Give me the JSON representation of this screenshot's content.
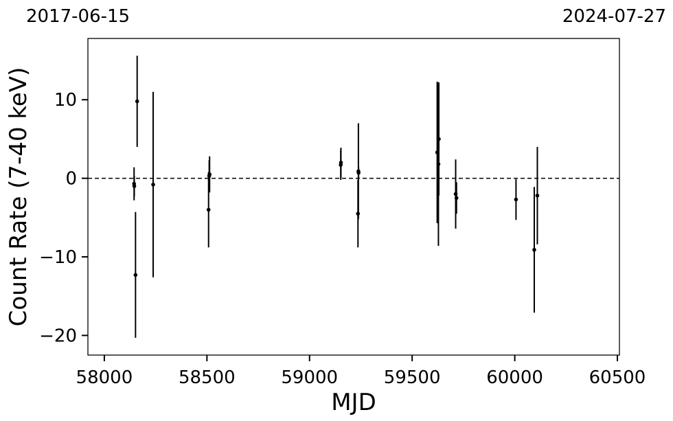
{
  "chart_data": {
    "type": "scatter",
    "title": "",
    "xlabel": "MJD",
    "ylabel": "Count Rate (7-40 keV)",
    "date_left": "2017-06-15",
    "date_right": "2024-07-27",
    "xlim": [
      57920,
      60510
    ],
    "ylim": [
      -22.5,
      17.8
    ],
    "xticks": [
      58000,
      58500,
      59000,
      59500,
      60000,
      60500
    ],
    "xtick_labels": [
      "58000",
      "58500",
      "59000",
      "59500",
      "60000",
      "60500"
    ],
    "yticks": [
      -20,
      -10,
      0,
      10
    ],
    "ytick_labels": [
      "−20",
      "−10",
      "0",
      "10"
    ],
    "reference_line": {
      "y": 0,
      "style": "dashed"
    },
    "grid": false,
    "series": [
      {
        "color": "#000000",
        "points": [
          {
            "x": 58145,
            "y": -0.7,
            "err": 2.1
          },
          {
            "x": 58146,
            "y": -1.0,
            "err": 1.3
          },
          {
            "x": 58152,
            "y": -12.3,
            "err": 8.0
          },
          {
            "x": 58160,
            "y": 9.8,
            "err": 5.8
          },
          {
            "x": 58238,
            "y": -0.8,
            "err": 11.8
          },
          {
            "x": 58508,
            "y": -4.0,
            "err": 4.8
          },
          {
            "x": 58511,
            "y": 0.3,
            "err": 2.0
          },
          {
            "x": 58513,
            "y": 0.5,
            "err": 2.3
          },
          {
            "x": 59152,
            "y": 1.7,
            "err": 1.9
          },
          {
            "x": 59153,
            "y": 2.0,
            "err": 1.9
          },
          {
            "x": 59236,
            "y": -4.5,
            "err": 4.3
          },
          {
            "x": 59238,
            "y": 0.9,
            "err": 6.1
          },
          {
            "x": 59239,
            "y": 0.7,
            "err": 0.7
          },
          {
            "x": 59622,
            "y": 3.3,
            "err": 9.0
          },
          {
            "x": 59628,
            "y": 1.8,
            "err": 10.4
          },
          {
            "x": 59630,
            "y": 5.0,
            "err": 7.2
          },
          {
            "x": 59712,
            "y": -2.0,
            "err": 4.4
          },
          {
            "x": 59716,
            "y": -2.5,
            "err": 2.0
          },
          {
            "x": 60006,
            "y": -2.7,
            "err": 2.6
          },
          {
            "x": 60095,
            "y": -9.1,
            "err": 8.0
          },
          {
            "x": 60110,
            "y": -2.2,
            "err": 6.2
          }
        ]
      }
    ]
  }
}
